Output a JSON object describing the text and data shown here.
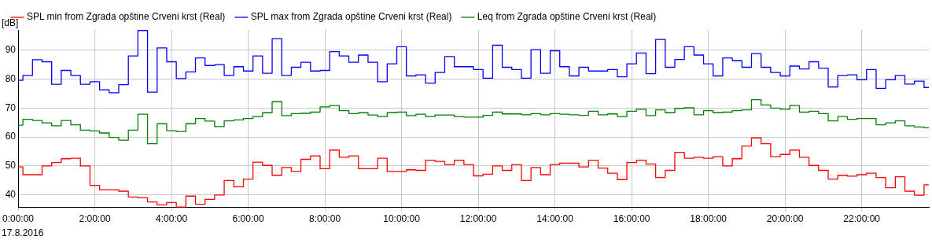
{
  "chart_data": {
    "type": "step",
    "ylabel": "[dB]",
    "annotations": [
      "17.8.2016"
    ],
    "x": [
      0,
      0.25,
      0.5,
      0.75,
      1,
      1.25,
      1.5,
      1.75,
      2,
      2.25,
      2.5,
      2.75,
      3,
      3.25,
      3.5,
      3.75,
      4,
      4.25,
      4.5,
      4.75,
      5,
      5.25,
      5.5,
      5.75,
      6,
      6.25,
      6.5,
      6.75,
      7,
      7.25,
      7.5,
      7.75,
      8,
      8.25,
      8.5,
      8.75,
      9,
      9.25,
      9.5,
      9.75,
      10,
      10.25,
      10.5,
      10.75,
      11,
      11.25,
      11.5,
      11.75,
      12,
      12.25,
      12.5,
      12.75,
      13,
      13.25,
      13.5,
      13.75,
      14,
      14.25,
      14.5,
      14.75,
      15,
      15.25,
      15.5,
      15.75,
      16,
      16.25,
      16.5,
      16.75,
      17,
      17.25,
      17.5,
      17.75,
      18,
      18.25,
      18.5,
      18.75,
      19,
      19.25,
      19.5,
      19.75,
      20,
      20.25,
      20.5,
      20.75,
      21,
      21.25,
      21.5,
      21.75,
      22,
      22.25,
      22.5,
      22.75,
      23,
      23.25,
      23.5,
      23.75
    ],
    "series": [
      {
        "name": "SPL min from Zgrada opštine Crveni krst (Real)",
        "color": "#ff0000",
        "values": [
          49.7,
          47.0,
          47.0,
          50.0,
          51.2,
          52.5,
          52.7,
          50.0,
          43.3,
          41.8,
          41.8,
          41.3,
          39.3,
          39.0,
          37.6,
          36.6,
          37.4,
          35.8,
          39.6,
          36.8,
          38.5,
          40.0,
          45.0,
          42.8,
          45.5,
          51.3,
          50.2,
          46.8,
          49.5,
          48.1,
          52.3,
          53.5,
          49.1,
          55.5,
          53.0,
          53.5,
          49.1,
          49.1,
          52.7,
          48.1,
          48.1,
          48.7,
          48.5,
          52.0,
          51.6,
          50.5,
          52.0,
          50.5,
          46.6,
          47.2,
          50.0,
          48.5,
          50.5,
          45.0,
          49.5,
          47.0,
          50.5,
          51.0,
          51.0,
          49.7,
          52.0,
          49.3,
          47.5,
          45.3,
          51.2,
          52.0,
          50.7,
          46.0,
          48.5,
          54.7,
          52.7,
          53.0,
          52.7,
          53.2,
          50.0,
          52.5,
          56.9,
          59.7,
          57.7,
          53.2,
          54.0,
          55.5,
          53.0,
          50.2,
          48.5,
          45.5,
          46.8,
          46.5,
          47.0,
          47.5,
          46.0,
          42.5,
          46.3,
          41.3,
          39.9,
          43.5
        ]
      },
      {
        "name": "SPL max from Zgrada opštine Crveni krst (Real)",
        "color": "#0000ff",
        "values": [
          79.6,
          81.3,
          86.7,
          86.0,
          78.2,
          83.0,
          81.3,
          78.2,
          79.1,
          76.3,
          75.3,
          78.1,
          88.0,
          96.8,
          75.5,
          90.8,
          86.0,
          80.2,
          82.5,
          87.3,
          84.7,
          85.0,
          81.3,
          84.3,
          82.8,
          88.0,
          82.0,
          94.0,
          81.3,
          84.1,
          85.8,
          82.8,
          83.0,
          89.5,
          88.0,
          85.8,
          88.3,
          85.8,
          79.1,
          85.3,
          91.2,
          81.1,
          81.5,
          78.6,
          82.3,
          87.8,
          84.3,
          84.3,
          83.3,
          80.3,
          91.7,
          84.1,
          83.3,
          80.3,
          90.2,
          82.0,
          89.8,
          84.3,
          81.1,
          84.1,
          82.8,
          82.8,
          83.3,
          80.8,
          85.3,
          89.0,
          81.9,
          93.7,
          84.1,
          86.8,
          91.2,
          88.3,
          85.3,
          81.1,
          87.3,
          86.4,
          84.1,
          88.8,
          84.1,
          82.3,
          81.1,
          84.5,
          83.5,
          86.0,
          83.8,
          77.3,
          81.3,
          81.5,
          79.8,
          83.3,
          76.8,
          79.8,
          81.3,
          78.3,
          79.3,
          77.1
        ]
      },
      {
        "name": "Leq from Zgrada opštine Crveni krst (Real)",
        "color": "#008000",
        "values": [
          64.1,
          66.1,
          65.7,
          64.9,
          63.9,
          65.7,
          64.2,
          62.4,
          62.1,
          61.4,
          59.9,
          58.9,
          62.4,
          67.9,
          57.7,
          64.6,
          62.2,
          61.9,
          64.6,
          66.4,
          65.5,
          63.6,
          65.6,
          65.9,
          66.4,
          67.1,
          68.4,
          72.2,
          67.4,
          68.1,
          68.2,
          68.6,
          70.4,
          70.9,
          69.1,
          68.1,
          68.4,
          67.6,
          67.1,
          68.4,
          68.6,
          67.4,
          67.9,
          67.1,
          67.6,
          67.6,
          67.1,
          66.9,
          66.9,
          67.5,
          68.6,
          68.0,
          68.0,
          67.7,
          68.1,
          67.7,
          68.1,
          67.9,
          67.7,
          67.5,
          68.9,
          67.7,
          68.0,
          67.1,
          68.9,
          69.6,
          67.4,
          69.4,
          68.4,
          69.9,
          70.1,
          67.7,
          69.1,
          68.4,
          68.6,
          69.1,
          69.4,
          72.9,
          71.1,
          70.0,
          69.6,
          70.9,
          68.6,
          68.9,
          68.1,
          65.6,
          67.1,
          66.1,
          66.4,
          66.4,
          64.2,
          64.9,
          65.6,
          63.9,
          63.5,
          63.2
        ]
      }
    ],
    "xlim": [
      0,
      23.75
    ],
    "xticks": [
      {
        "value": 0,
        "label": "0:00:00"
      },
      {
        "value": 2,
        "label": "2:00:00"
      },
      {
        "value": 4,
        "label": "4:00:00"
      },
      {
        "value": 6,
        "label": "6:00:00"
      },
      {
        "value": 8,
        "label": "8:00:00"
      },
      {
        "value": 10,
        "label": "10:00:00"
      },
      {
        "value": 12,
        "label": "12:00:00"
      },
      {
        "value": 14,
        "label": "14:00:00"
      },
      {
        "value": 16,
        "label": "16:00:00"
      },
      {
        "value": 18,
        "label": "18:00:00"
      },
      {
        "value": 20,
        "label": "20:00:00"
      },
      {
        "value": 22,
        "label": "22:00:00"
      }
    ],
    "ylim": [
      35.7,
      97
    ],
    "yticks": [
      40,
      50,
      60,
      70,
      80,
      90
    ],
    "grid": true,
    "legend": "top left",
    "marker": "none",
    "line_style": "solid"
  }
}
